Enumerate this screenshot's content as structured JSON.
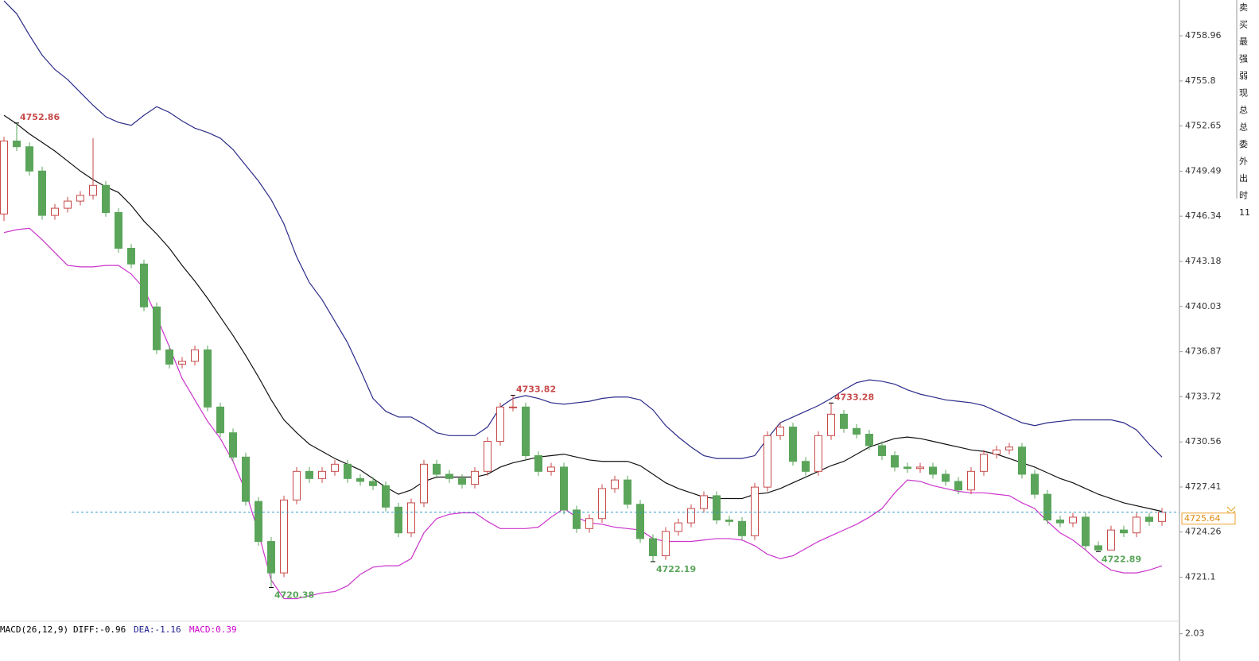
{
  "chart_data": {
    "type": "candlestick",
    "up_color": "#c84a4a",
    "down_color": "#5aa55a",
    "ylim": [
      4718.13,
      4761.46
    ],
    "yticks": [
      4758.96,
      4755.8,
      4752.65,
      4749.49,
      4746.34,
      4743.18,
      4740.03,
      4736.87,
      4733.72,
      4730.56,
      4727.41,
      4724.26,
      4721.1
    ],
    "open": [
      4746.5,
      4751.6,
      4751.2,
      4749.5,
      4746.4,
      4746.9,
      4747.4,
      4747.8,
      4748.5,
      4746.6,
      4744.1,
      4743.0,
      4740.0,
      4737.0,
      4736.0,
      4736.2,
      4737.0,
      4733.0,
      4731.2,
      4729.5,
      4726.4,
      4723.6,
      4721.4,
      4726.5,
      4728.5,
      4728.0,
      4728.5,
      4729.0,
      4728.0,
      4727.8,
      4727.5,
      4726.0,
      4724.2,
      4726.3,
      4729.0,
      4728.3,
      4728.0,
      4727.6,
      4728.5,
      4730.6,
      4733.0,
      4733.0,
      4729.6,
      4728.5,
      4728.8,
      4725.8,
      4724.5,
      4725.2,
      4727.3,
      4727.9,
      4726.2,
      4723.8,
      4722.6,
      4724.3,
      4724.9,
      4725.9,
      4726.8,
      4725.1,
      4725.0,
      4724.0,
      4727.4,
      4731.0,
      4731.6,
      4729.2,
      4728.5,
      4731.0,
      4732.5,
      4731.5,
      4731.1,
      4730.3,
      4729.6,
      4728.8,
      4728.7,
      4728.8,
      4728.3,
      4727.8,
      4727.2,
      4728.5,
      4729.7,
      4730.0,
      4730.2,
      4728.3,
      4726.9,
      4725.1,
      4724.9,
      4725.3,
      4723.3,
      4723.0,
      4724.4,
      4724.2,
      4725.3,
      4725.0
    ],
    "high": [
      4751.9,
      4752.86,
      4751.5,
      4749.8,
      4747.2,
      4747.7,
      4748.1,
      4751.8,
      4748.8,
      4746.9,
      4744.4,
      4743.3,
      4740.3,
      4737.3,
      4736.5,
      4737.3,
      4737.3,
      4733.3,
      4731.5,
      4729.8,
      4726.7,
      4723.9,
      4726.8,
      4728.8,
      4728.8,
      4728.8,
      4729.3,
      4729.3,
      4728.3,
      4728.1,
      4727.8,
      4726.3,
      4726.6,
      4729.3,
      4729.3,
      4728.6,
      4728.3,
      4728.8,
      4730.9,
      4733.3,
      4733.82,
      4733.3,
      4729.9,
      4729.1,
      4729.1,
      4726.1,
      4725.5,
      4727.6,
      4728.2,
      4728.2,
      4726.5,
      4724.1,
      4724.6,
      4725.2,
      4726.2,
      4727.1,
      4727.1,
      4725.4,
      4725.3,
      4727.7,
      4731.3,
      4731.9,
      4731.9,
      4729.5,
      4731.3,
      4733.28,
      4732.8,
      4731.8,
      4731.4,
      4730.6,
      4729.9,
      4729.1,
      4729.1,
      4729.1,
      4728.6,
      4728.1,
      4728.8,
      4730.0,
      4730.3,
      4730.5,
      4730.5,
      4728.6,
      4727.2,
      4725.4,
      4725.6,
      4725.6,
      4723.6,
      4724.7,
      4724.7,
      4725.6,
      4725.6,
      4725.94
    ],
    "low": [
      4746.0,
      4750.9,
      4749.2,
      4746.1,
      4746.1,
      4746.6,
      4747.1,
      4747.5,
      4746.3,
      4743.8,
      4742.7,
      4739.7,
      4736.7,
      4735.7,
      4735.7,
      4735.9,
      4732.7,
      4730.9,
      4729.2,
      4726.1,
      4723.3,
      4720.38,
      4721.1,
      4726.2,
      4727.7,
      4727.7,
      4728.2,
      4727.7,
      4727.5,
      4727.2,
      4725.7,
      4723.9,
      4723.9,
      4726.0,
      4728.0,
      4727.7,
      4727.3,
      4727.3,
      4728.2,
      4730.3,
      4732.7,
      4729.3,
      4728.2,
      4728.2,
      4725.5,
      4724.2,
      4724.2,
      4724.9,
      4727.0,
      4725.9,
      4723.5,
      4722.19,
      4722.3,
      4724.0,
      4724.6,
      4725.6,
      4724.8,
      4724.7,
      4723.7,
      4723.7,
      4727.1,
      4730.7,
      4728.9,
      4728.2,
      4728.2,
      4730.7,
      4731.2,
      4730.8,
      4730.0,
      4729.3,
      4728.5,
      4728.4,
      4728.4,
      4728.0,
      4727.5,
      4726.9,
      4726.9,
      4728.2,
      4729.4,
      4729.7,
      4728.0,
      4726.6,
      4724.8,
      4724.6,
      4724.6,
      4723.0,
      4722.89,
      4723.0,
      4723.9,
      4723.9,
      4724.7,
      4724.7
    ],
    "close": [
      4751.6,
      4751.2,
      4749.5,
      4746.4,
      4746.9,
      4747.4,
      4747.8,
      4748.5,
      4746.6,
      4744.1,
      4743.0,
      4740.0,
      4737.0,
      4736.0,
      4736.2,
      4737.0,
      4733.0,
      4731.2,
      4729.5,
      4726.4,
      4723.6,
      4721.4,
      4726.5,
      4728.5,
      4728.0,
      4728.5,
      4729.0,
      4728.0,
      4727.8,
      4727.5,
      4726.0,
      4724.2,
      4726.3,
      4729.0,
      4728.3,
      4728.0,
      4727.6,
      4728.5,
      4730.6,
      4733.0,
      4733.0,
      4729.6,
      4728.5,
      4728.8,
      4725.8,
      4724.5,
      4725.2,
      4727.3,
      4727.9,
      4726.2,
      4723.8,
      4722.6,
      4724.3,
      4724.9,
      4725.9,
      4726.8,
      4725.1,
      4725.0,
      4724.0,
      4727.4,
      4731.0,
      4731.6,
      4729.2,
      4728.5,
      4731.0,
      4732.5,
      4731.5,
      4731.1,
      4730.3,
      4729.6,
      4728.8,
      4728.7,
      4728.8,
      4728.3,
      4727.8,
      4727.2,
      4728.5,
      4729.7,
      4730.0,
      4730.2,
      4728.3,
      4726.9,
      4725.1,
      4724.9,
      4725.3,
      4723.3,
      4723.0,
      4724.4,
      4724.2,
      4725.3,
      4725.0,
      4725.64
    ],
    "lines": [
      {
        "color": "#2b2b8a",
        "values": [
          4761.4,
          4760.5,
          4759.0,
          4757.6,
          4756.6,
          4755.9,
          4755.0,
          4754.1,
          4753.3,
          4752.9,
          4752.7,
          4753.4,
          4754.0,
          4753.6,
          4753.0,
          4752.5,
          4752.2,
          4751.8,
          4751.0,
          4749.9,
          4748.8,
          4747.5,
          4745.8,
          4743.5,
          4741.7,
          4740.5,
          4739.0,
          4737.5,
          4735.6,
          4733.6,
          4732.7,
          4732.3,
          4732.3,
          4731.8,
          4731.2,
          4731.0,
          4731.0,
          4731.0,
          4731.6,
          4733.0,
          4733.6,
          4733.8,
          4733.6,
          4733.3,
          4733.2,
          4733.3,
          4733.4,
          4733.6,
          4733.7,
          4733.7,
          4733.5,
          4732.8,
          4731.7,
          4730.9,
          4730.2,
          4729.6,
          4729.4,
          4729.4,
          4729.4,
          4729.6,
          4730.8,
          4731.9,
          4732.3,
          4732.7,
          4733.1,
          4733.6,
          4734.2,
          4734.7,
          4734.9,
          4734.8,
          4734.6,
          4734.2,
          4733.9,
          4733.7,
          4733.5,
          4733.4,
          4733.3,
          4733.1,
          4732.7,
          4732.3,
          4731.9,
          4731.7,
          4731.9,
          4732.0,
          4732.1,
          4732.1,
          4732.1,
          4732.1,
          4731.9,
          4731.4,
          4730.4,
          4729.5
        ]
      },
      {
        "color": "#111111",
        "values": [
          4753.4,
          4752.8,
          4752.1,
          4751.5,
          4750.9,
          4750.2,
          4749.5,
          4748.9,
          4748.4,
          4748.0,
          4747.1,
          4746.0,
          4745.1,
          4744.1,
          4742.9,
          4741.8,
          4740.6,
          4739.3,
          4738.0,
          4736.6,
          4735.1,
          4733.5,
          4732.1,
          4731.2,
          4730.4,
          4729.9,
          4729.4,
          4729.0,
          4728.6,
          4728.0,
          4727.4,
          4726.9,
          4727.2,
          4727.8,
          4728.1,
          4728.1,
          4728.1,
          4728.1,
          4728.3,
          4728.8,
          4729.1,
          4729.3,
          4729.5,
          4729.6,
          4729.7,
          4729.5,
          4729.3,
          4729.2,
          4729.2,
          4729.2,
          4728.9,
          4728.3,
          4727.7,
          4727.3,
          4727.0,
          4726.7,
          4726.6,
          4726.6,
          4726.6,
          4726.9,
          4727.0,
          4727.3,
          4727.7,
          4728.1,
          4728.5,
          4728.9,
          4729.2,
          4729.7,
          4730.2,
          4730.5,
          4730.8,
          4730.9,
          4730.8,
          4730.6,
          4730.4,
          4730.2,
          4730.0,
          4729.9,
          4729.7,
          4729.4,
          4729.1,
          4728.8,
          4728.4,
          4728.0,
          4727.7,
          4727.3,
          4726.9,
          4726.6,
          4726.3,
          4726.1,
          4725.9,
          4725.7
        ]
      },
      {
        "color": "#cc33cc",
        "values": [
          4745.2,
          4745.4,
          4745.5,
          4744.7,
          4743.8,
          4742.9,
          4742.8,
          4742.8,
          4742.9,
          4742.9,
          4742.3,
          4741.3,
          4739.3,
          4737.2,
          4735.0,
          4733.5,
          4732.0,
          4730.8,
          4729.2,
          4727.1,
          4724.2,
          4720.9,
          4719.6,
          4719.6,
          4719.8,
          4720.0,
          4720.1,
          4720.5,
          4721.3,
          4721.8,
          4721.9,
          4721.9,
          4722.4,
          4724.2,
          4725.2,
          4725.5,
          4725.6,
          4725.6,
          4725.0,
          4724.5,
          4724.5,
          4724.5,
          4724.6,
          4725.3,
          4725.9,
          4725.3,
          4724.9,
          4724.8,
          4724.6,
          4724.5,
          4724.4,
          4723.8,
          4723.6,
          4723.6,
          4723.6,
          4723.7,
          4723.8,
          4723.8,
          4723.7,
          4723.3,
          4722.7,
          4722.4,
          4722.6,
          4723.1,
          4723.6,
          4724.0,
          4724.4,
          4724.8,
          4725.3,
          4725.9,
          4727.0,
          4727.9,
          4727.8,
          4727.5,
          4727.3,
          4727.1,
          4727.0,
          4727.0,
          4726.9,
          4726.8,
          4726.3,
          4725.9,
          4725.0,
          4724.2,
          4723.7,
          4723.0,
          4722.2,
          4721.6,
          4721.4,
          4721.4,
          4721.6,
          4721.9
        ]
      }
    ],
    "macd": {
      "title": "MACD(26,12,9)",
      "diff": "DIFF:-0.96",
      "dea": "DEA:-1.16",
      "macd": "MACD:0.39",
      "ylim": [
        0.6,
        2.6
      ],
      "yticks": [
        2.03
      ]
    },
    "side_labels": [
      "卖",
      "买",
      "最",
      "强",
      "弱",
      "现",
      "总",
      "总",
      "委",
      "外",
      "出",
      "时",
      "11"
    ]
  }
}
